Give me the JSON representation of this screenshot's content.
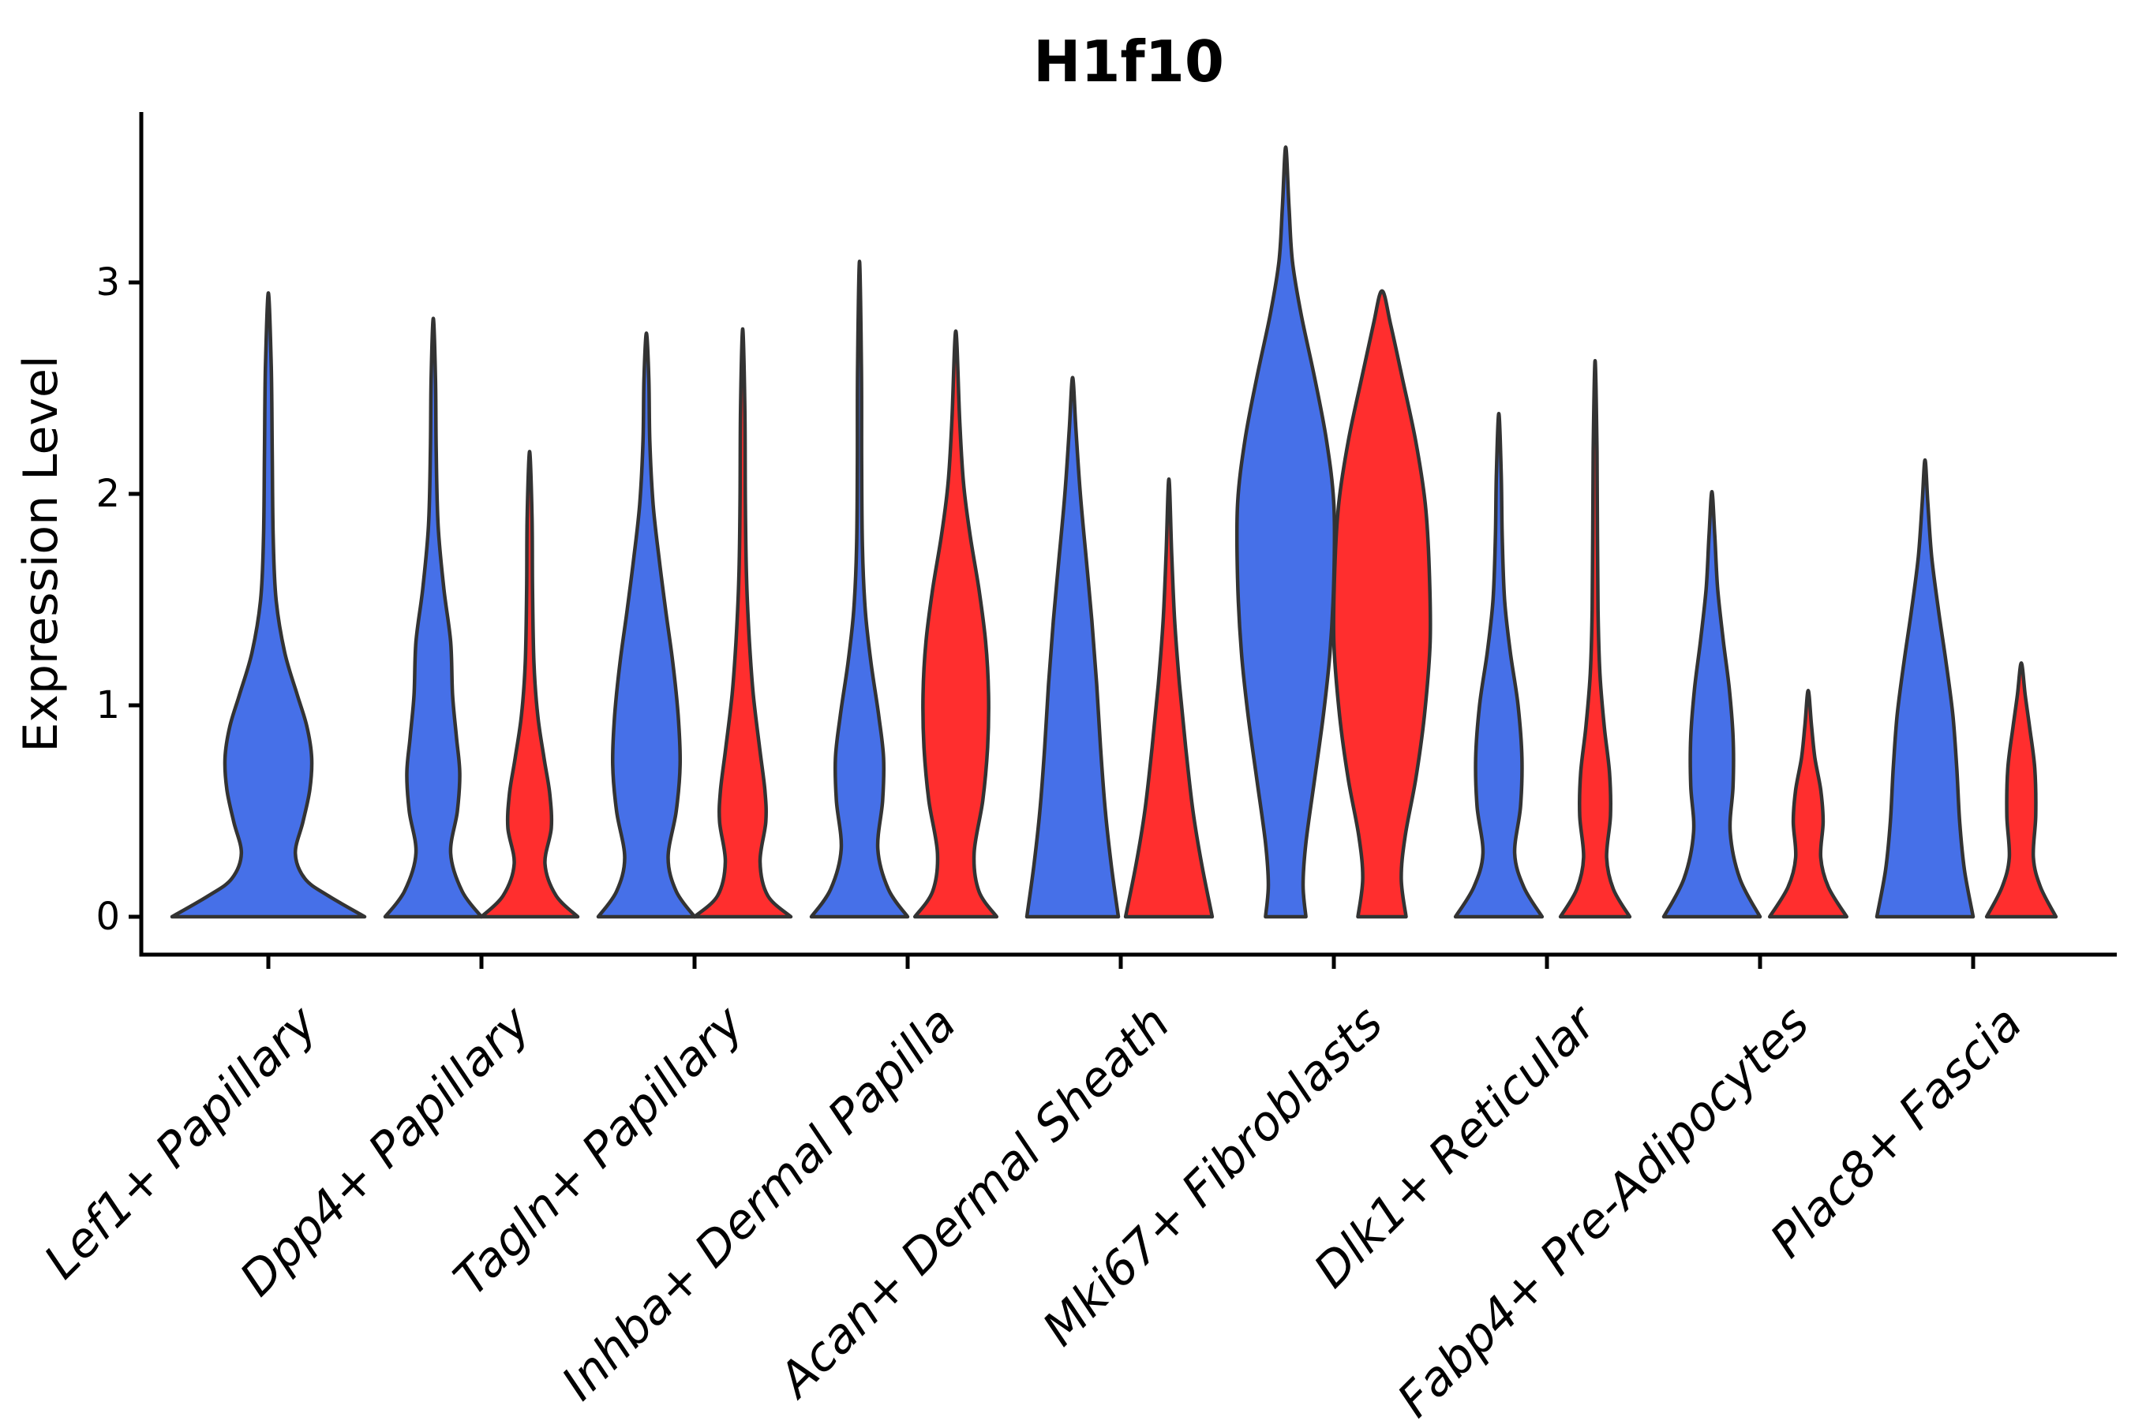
{
  "chart_data": {
    "type": "violin",
    "title": "H1f10",
    "ylabel": "Expression Level",
    "xlabel": "",
    "yticks": [
      0,
      1,
      2,
      3
    ],
    "ylim": [
      0,
      3.8
    ],
    "grid": false,
    "legend": "none",
    "x_tick_style": "italic, rotated 45deg",
    "categories": [
      "Lef1+ Papillary",
      "Dpp4+ Papillary",
      "Tagln+ Papillary",
      "Inhba+ Dermal Papilla",
      "Acan+ Dermal Sheath",
      "Mki67+ Fibroblasts",
      "Dlk1+ Reticular",
      "Fabp4+ Pre-Adipocytes",
      "Plac8+ Fascia"
    ],
    "series": [
      {
        "name": "blue",
        "color": "#4670E8"
      },
      {
        "name": "red",
        "color": "#FF2E2E"
      }
    ],
    "colors": {
      "blue": "#4670E8",
      "red": "#FF2E2E"
    },
    "edge_color": "#333333",
    "violins": [
      {
        "group": 0,
        "series": "blue",
        "layout": "full",
        "max_value": 2.95,
        "profile": [
          [
            0,
            1.0
          ],
          [
            0.1,
            0.62
          ],
          [
            0.18,
            0.38
          ],
          [
            0.3,
            0.28
          ],
          [
            0.45,
            0.36
          ],
          [
            0.6,
            0.43
          ],
          [
            0.75,
            0.45
          ],
          [
            0.9,
            0.4
          ],
          [
            1.05,
            0.3
          ],
          [
            1.25,
            0.17
          ],
          [
            1.5,
            0.08
          ],
          [
            1.8,
            0.05
          ],
          [
            2.2,
            0.04
          ],
          [
            2.6,
            0.03
          ],
          [
            2.95,
            0
          ]
        ]
      },
      {
        "group": 1,
        "series": "blue",
        "layout": "left",
        "max_value": 2.83,
        "profile": [
          [
            0,
            1.0
          ],
          [
            0.12,
            0.6
          ],
          [
            0.3,
            0.36
          ],
          [
            0.5,
            0.5
          ],
          [
            0.68,
            0.55
          ],
          [
            0.85,
            0.48
          ],
          [
            1.05,
            0.4
          ],
          [
            1.3,
            0.36
          ],
          [
            1.55,
            0.22
          ],
          [
            1.85,
            0.1
          ],
          [
            2.2,
            0.06
          ],
          [
            2.55,
            0.045
          ],
          [
            2.83,
            0
          ]
        ]
      },
      {
        "group": 1,
        "series": "red",
        "layout": "right",
        "max_value": 2.2,
        "profile": [
          [
            0,
            1.0
          ],
          [
            0.1,
            0.55
          ],
          [
            0.25,
            0.32
          ],
          [
            0.42,
            0.45
          ],
          [
            0.58,
            0.42
          ],
          [
            0.75,
            0.3
          ],
          [
            0.95,
            0.17
          ],
          [
            1.2,
            0.09
          ],
          [
            1.55,
            0.06
          ],
          [
            1.9,
            0.05
          ],
          [
            2.2,
            0
          ]
        ]
      },
      {
        "group": 2,
        "series": "blue",
        "layout": "left",
        "max_value": 2.76,
        "profile": [
          [
            0,
            1.0
          ],
          [
            0.12,
            0.62
          ],
          [
            0.28,
            0.45
          ],
          [
            0.5,
            0.62
          ],
          [
            0.72,
            0.7
          ],
          [
            0.95,
            0.66
          ],
          [
            1.2,
            0.55
          ],
          [
            1.45,
            0.4
          ],
          [
            1.7,
            0.26
          ],
          [
            1.95,
            0.14
          ],
          [
            2.25,
            0.07
          ],
          [
            2.55,
            0.05
          ],
          [
            2.76,
            0
          ]
        ]
      },
      {
        "group": 2,
        "series": "red",
        "layout": "right",
        "max_value": 2.78,
        "profile": [
          [
            0,
            1.0
          ],
          [
            0.1,
            0.52
          ],
          [
            0.26,
            0.36
          ],
          [
            0.45,
            0.48
          ],
          [
            0.6,
            0.46
          ],
          [
            0.8,
            0.35
          ],
          [
            1.05,
            0.22
          ],
          [
            1.3,
            0.14
          ],
          [
            1.6,
            0.08
          ],
          [
            1.95,
            0.055
          ],
          [
            2.4,
            0.045
          ],
          [
            2.78,
            0
          ]
        ]
      },
      {
        "group": 3,
        "series": "blue",
        "layout": "left",
        "max_value": 3.1,
        "profile": [
          [
            0,
            1.0
          ],
          [
            0.13,
            0.6
          ],
          [
            0.32,
            0.38
          ],
          [
            0.55,
            0.48
          ],
          [
            0.75,
            0.5
          ],
          [
            0.95,
            0.4
          ],
          [
            1.2,
            0.24
          ],
          [
            1.45,
            0.12
          ],
          [
            1.75,
            0.06
          ],
          [
            2.15,
            0.045
          ],
          [
            2.6,
            0.04
          ],
          [
            3.1,
            0
          ]
        ]
      },
      {
        "group": 3,
        "series": "red",
        "layout": "right",
        "max_value": 2.77,
        "profile": [
          [
            0,
            0.85
          ],
          [
            0.12,
            0.48
          ],
          [
            0.3,
            0.38
          ],
          [
            0.55,
            0.56
          ],
          [
            0.8,
            0.66
          ],
          [
            1.05,
            0.68
          ],
          [
            1.3,
            0.62
          ],
          [
            1.55,
            0.48
          ],
          [
            1.8,
            0.3
          ],
          [
            2.05,
            0.16
          ],
          [
            2.35,
            0.08
          ],
          [
            2.77,
            0
          ]
        ]
      },
      {
        "group": 4,
        "series": "blue",
        "layout": "left",
        "max_value": 2.55,
        "profile": [
          [
            0,
            0.95
          ],
          [
            0.25,
            0.8
          ],
          [
            0.5,
            0.68
          ],
          [
            0.8,
            0.58
          ],
          [
            1.1,
            0.5
          ],
          [
            1.4,
            0.4
          ],
          [
            1.7,
            0.28
          ],
          [
            2.0,
            0.16
          ],
          [
            2.3,
            0.07
          ],
          [
            2.55,
            0
          ]
        ]
      },
      {
        "group": 4,
        "series": "red",
        "layout": "right",
        "max_value": 2.07,
        "profile": [
          [
            0,
            0.9
          ],
          [
            0.25,
            0.68
          ],
          [
            0.5,
            0.5
          ],
          [
            0.8,
            0.35
          ],
          [
            1.1,
            0.22
          ],
          [
            1.4,
            0.12
          ],
          [
            1.7,
            0.06
          ],
          [
            2.07,
            0
          ]
        ]
      },
      {
        "group": 5,
        "series": "blue",
        "layout": "left",
        "max_value": 3.64,
        "profile": [
          [
            0,
            0.42
          ],
          [
            0.15,
            0.36
          ],
          [
            0.35,
            0.42
          ],
          [
            0.65,
            0.6
          ],
          [
            0.95,
            0.78
          ],
          [
            1.25,
            0.92
          ],
          [
            1.6,
            1.0
          ],
          [
            1.95,
            1.0
          ],
          [
            2.25,
            0.85
          ],
          [
            2.55,
            0.6
          ],
          [
            2.85,
            0.32
          ],
          [
            3.1,
            0.14
          ],
          [
            3.35,
            0.07
          ],
          [
            3.64,
            0
          ]
        ]
      },
      {
        "group": 5,
        "series": "red",
        "layout": "right",
        "max_value": 2.96,
        "profile": [
          [
            0,
            0.5
          ],
          [
            0.18,
            0.4
          ],
          [
            0.38,
            0.48
          ],
          [
            0.65,
            0.7
          ],
          [
            0.95,
            0.88
          ],
          [
            1.3,
            1.0
          ],
          [
            1.65,
            0.98
          ],
          [
            1.95,
            0.9
          ],
          [
            2.25,
            0.7
          ],
          [
            2.55,
            0.42
          ],
          [
            2.8,
            0.18
          ],
          [
            2.96,
            0
          ]
        ]
      },
      {
        "group": 6,
        "series": "blue",
        "layout": "left",
        "max_value": 2.38,
        "profile": [
          [
            0,
            0.9
          ],
          [
            0.14,
            0.52
          ],
          [
            0.3,
            0.33
          ],
          [
            0.52,
            0.45
          ],
          [
            0.75,
            0.48
          ],
          [
            1.0,
            0.4
          ],
          [
            1.25,
            0.24
          ],
          [
            1.5,
            0.12
          ],
          [
            1.8,
            0.07
          ],
          [
            2.1,
            0.05
          ],
          [
            2.38,
            0
          ]
        ]
      },
      {
        "group": 6,
        "series": "red",
        "layout": "right",
        "max_value": 2.63,
        "profile": [
          [
            0,
            0.72
          ],
          [
            0.13,
            0.38
          ],
          [
            0.28,
            0.24
          ],
          [
            0.48,
            0.32
          ],
          [
            0.68,
            0.3
          ],
          [
            0.9,
            0.19
          ],
          [
            1.15,
            0.1
          ],
          [
            1.45,
            0.06
          ],
          [
            1.8,
            0.05
          ],
          [
            2.2,
            0.04
          ],
          [
            2.63,
            0
          ]
        ]
      },
      {
        "group": 7,
        "series": "blue",
        "layout": "left",
        "max_value": 2.01,
        "profile": [
          [
            0,
            1.0
          ],
          [
            0.18,
            0.58
          ],
          [
            0.4,
            0.38
          ],
          [
            0.62,
            0.44
          ],
          [
            0.85,
            0.44
          ],
          [
            1.08,
            0.36
          ],
          [
            1.3,
            0.24
          ],
          [
            1.55,
            0.12
          ],
          [
            1.8,
            0.06
          ],
          [
            2.01,
            0
          ]
        ]
      },
      {
        "group": 7,
        "series": "red",
        "layout": "right",
        "max_value": 1.07,
        "profile": [
          [
            0,
            0.8
          ],
          [
            0.14,
            0.42
          ],
          [
            0.28,
            0.26
          ],
          [
            0.45,
            0.31
          ],
          [
            0.6,
            0.26
          ],
          [
            0.75,
            0.14
          ],
          [
            0.9,
            0.07
          ],
          [
            1.07,
            0
          ]
        ]
      },
      {
        "group": 8,
        "series": "blue",
        "layout": "left",
        "max_value": 2.16,
        "profile": [
          [
            0,
            1.0
          ],
          [
            0.22,
            0.82
          ],
          [
            0.45,
            0.72
          ],
          [
            0.7,
            0.66
          ],
          [
            0.95,
            0.58
          ],
          [
            1.2,
            0.44
          ],
          [
            1.45,
            0.28
          ],
          [
            1.7,
            0.14
          ],
          [
            1.95,
            0.06
          ],
          [
            2.16,
            0
          ]
        ]
      },
      {
        "group": 8,
        "series": "red",
        "layout": "right",
        "max_value": 1.2,
        "profile": [
          [
            0,
            0.72
          ],
          [
            0.14,
            0.4
          ],
          [
            0.28,
            0.25
          ],
          [
            0.48,
            0.3
          ],
          [
            0.7,
            0.28
          ],
          [
            0.9,
            0.17
          ],
          [
            1.05,
            0.08
          ],
          [
            1.2,
            0
          ]
        ]
      }
    ]
  }
}
